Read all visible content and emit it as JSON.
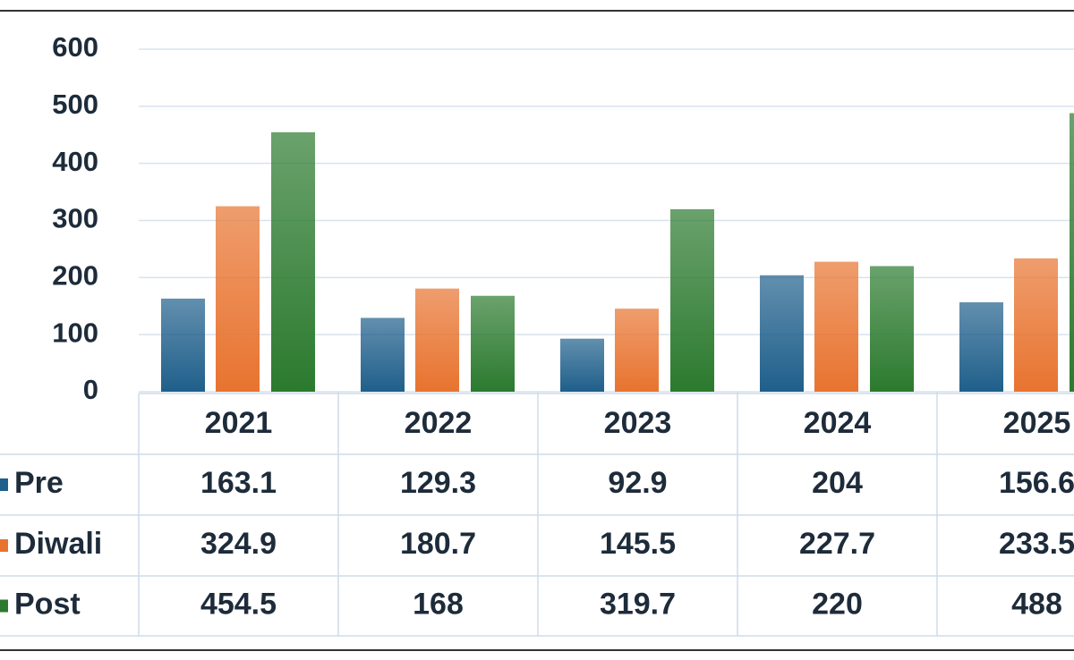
{
  "chart_data": {
    "type": "bar",
    "categories": [
      "2021",
      "2022",
      "2023",
      "2024",
      "2025"
    ],
    "series": [
      {
        "name": "Pre",
        "color": "#1f5f8b",
        "values": [
          163.1,
          129.3,
          92.9,
          204,
          156.6
        ]
      },
      {
        "name": "Diwali",
        "color": "#e8732f",
        "values": [
          324.9,
          180.7,
          145.5,
          227.7,
          233.5
        ]
      },
      {
        "name": "Post",
        "color": "#2b7a2e",
        "values": [
          454.5,
          168,
          319.7,
          220,
          488
        ]
      }
    ],
    "ylim": [
      0,
      600
    ],
    "yticks": [
      0,
      100,
      200,
      300,
      400,
      500,
      600
    ],
    "grid": true,
    "data_table": true
  }
}
